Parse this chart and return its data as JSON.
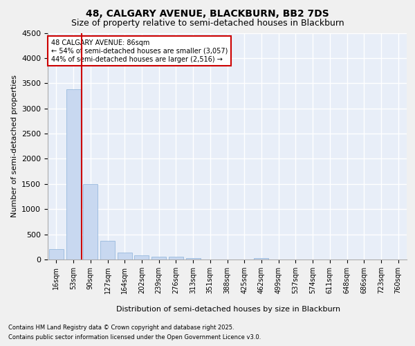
{
  "title": "48, CALGARY AVENUE, BLACKBURN, BB2 7DS",
  "subtitle": "Size of property relative to semi-detached houses in Blackburn",
  "xlabel": "Distribution of semi-detached houses by size in Blackburn",
  "ylabel": "Number of semi-detached properties",
  "categories": [
    "16sqm",
    "53sqm",
    "90sqm",
    "127sqm",
    "164sqm",
    "202sqm",
    "239sqm",
    "276sqm",
    "313sqm",
    "351sqm",
    "388sqm",
    "425sqm",
    "462sqm",
    "499sqm",
    "537sqm",
    "574sqm",
    "611sqm",
    "648sqm",
    "686sqm",
    "723sqm",
    "760sqm"
  ],
  "values": [
    200,
    3380,
    1500,
    375,
    140,
    80,
    60,
    55,
    30,
    0,
    0,
    0,
    30,
    0,
    0,
    0,
    0,
    0,
    0,
    0,
    0
  ],
  "bar_color": "#c8d8f0",
  "bar_edge_color": "#8ab0d8",
  "vline_color": "#cc0000",
  "ylim": [
    0,
    4500
  ],
  "yticks": [
    0,
    500,
    1000,
    1500,
    2000,
    2500,
    3000,
    3500,
    4000,
    4500
  ],
  "annotation_text": "48 CALGARY AVENUE: 86sqm\n← 54% of semi-detached houses are smaller (3,057)\n44% of semi-detached houses are larger (2,516) →",
  "annotation_box_color": "#ffffff",
  "annotation_border_color": "#cc0000",
  "footer_line1": "Contains HM Land Registry data © Crown copyright and database right 2025.",
  "footer_line2": "Contains public sector information licensed under the Open Government Licence v3.0.",
  "fig_background": "#f0f0f0",
  "plot_background": "#e8eef8",
  "grid_color": "#ffffff",
  "title_fontsize": 10,
  "subtitle_fontsize": 9,
  "tick_fontsize": 7,
  "ylabel_fontsize": 8,
  "xlabel_fontsize": 8,
  "annotation_fontsize": 7,
  "footer_fontsize": 6
}
